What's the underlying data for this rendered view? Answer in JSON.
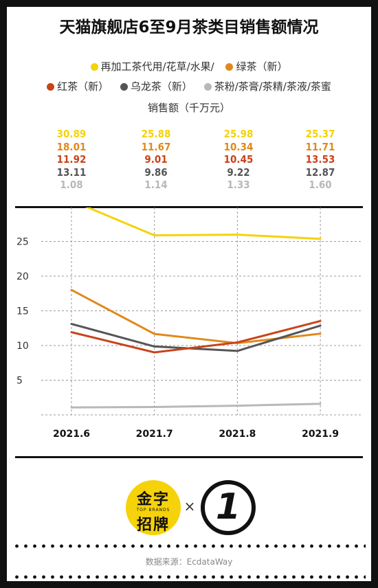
{
  "title": "天猫旗舰店6至9月茶类目销售额情况",
  "legend": {
    "row1": [
      {
        "label": "再加工茶代用/花草/水果/",
        "color": "#f5d20a"
      },
      {
        "label": "绿茶（新）",
        "color": "#e0891c"
      }
    ],
    "row2": [
      {
        "label": "红茶（新）",
        "color": "#c9431a"
      },
      {
        "label": "乌龙茶（新）",
        "color": "#555555"
      },
      {
        "label": "茶粉/茶膏/茶精/茶液/茶蜜",
        "color": "#b8b8b8"
      }
    ]
  },
  "unit_label": "销售额（千万元）",
  "value_table": [
    {
      "month": "2021.6",
      "values": [
        "30.89",
        "18.01",
        "11.92",
        "13.11",
        "1.08"
      ]
    },
    {
      "month": "2021.7",
      "values": [
        "25.88",
        "11.67",
        "9.01",
        "9.86",
        "1.14"
      ]
    },
    {
      "month": "2021.8",
      "values": [
        "25.98",
        "10.34",
        "10.45",
        "9.22",
        "1.33"
      ]
    },
    {
      "month": "2021.9",
      "values": [
        "25.37",
        "11.71",
        "13.53",
        "12.87",
        "1.60"
      ]
    }
  ],
  "chart_data": {
    "type": "line",
    "title": "天猫旗舰店6至9月茶类目销售额情况",
    "ylabel": "销售额（千万元）",
    "xlabel": "",
    "categories": [
      "2021.6",
      "2021.7",
      "2021.8",
      "2021.9"
    ],
    "ylim": [
      0,
      30
    ],
    "yticks": [
      5,
      10,
      15,
      20,
      25
    ],
    "grid": true,
    "legend_position": "top",
    "series": [
      {
        "name": "再加工茶代用/花草/水果/",
        "color": "#f5d20a",
        "values": [
          30.89,
          25.88,
          25.98,
          25.37
        ]
      },
      {
        "name": "绿茶（新）",
        "color": "#e0891c",
        "values": [
          18.01,
          11.67,
          10.34,
          11.71
        ]
      },
      {
        "name": "红茶（新）",
        "color": "#c9431a",
        "values": [
          11.92,
          9.01,
          10.45,
          13.53
        ]
      },
      {
        "name": "乌龙茶（新）",
        "color": "#555555",
        "values": [
          13.11,
          9.86,
          9.22,
          12.87
        ]
      },
      {
        "name": "茶粉/茶膏/茶精/茶液/茶蜜",
        "color": "#b8b8b8",
        "values": [
          1.08,
          1.14,
          1.33,
          1.6
        ]
      }
    ]
  },
  "logo": {
    "brand_line1": "金字",
    "brand_sub": "TOP BRANDS",
    "brand_line2": "招牌",
    "times": "×",
    "partner_mark": "1"
  },
  "source": "数据来源：EcdataWay"
}
